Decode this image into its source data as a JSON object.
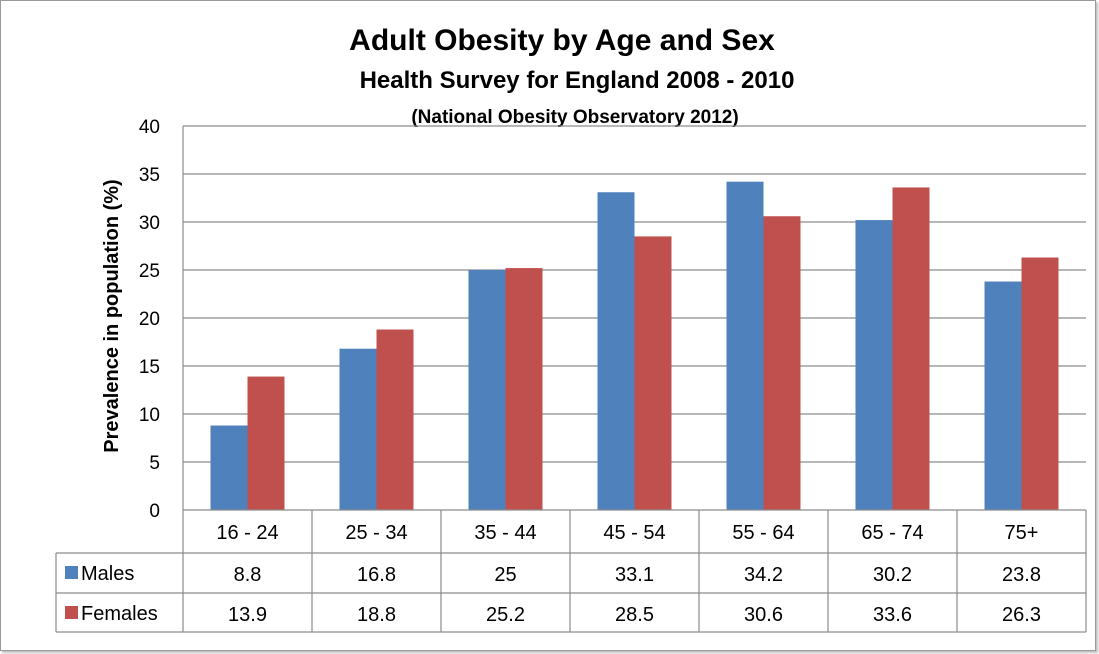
{
  "chart_data": {
    "type": "bar",
    "title": "Adult Obesity by Age and Sex",
    "subtitle": "Health Survey for England 2008 - 2010",
    "source": "(National Obesity Observatory 2012)",
    "ylabel": "Prevalence in population (%)",
    "xlabel": "",
    "ylim": [
      0,
      40
    ],
    "yticks": [
      "0",
      "5",
      "10",
      "15",
      "20",
      "25",
      "30",
      "35",
      "40"
    ],
    "grid": true,
    "legend_placement": "data table",
    "categories": [
      "16 - 24",
      "25 - 34",
      "35 - 44",
      "45 - 54",
      "55 - 64",
      "65 - 74",
      "75+"
    ],
    "series": [
      {
        "name": "Males",
        "color": "#4f81bd",
        "values": [
          8.8,
          16.8,
          25,
          33.1,
          34.2,
          30.2,
          23.8
        ],
        "labels": [
          "8.8",
          "16.8",
          "25",
          "33.1",
          "34.2",
          "30.2",
          "23.8"
        ]
      },
      {
        "name": "Females",
        "color": "#c0504d",
        "values": [
          13.9,
          18.8,
          25.2,
          28.5,
          30.6,
          33.6,
          26.3
        ],
        "labels": [
          "13.9",
          "18.8",
          "25.2",
          "28.5",
          "30.6",
          "33.6",
          "26.3"
        ]
      }
    ]
  }
}
